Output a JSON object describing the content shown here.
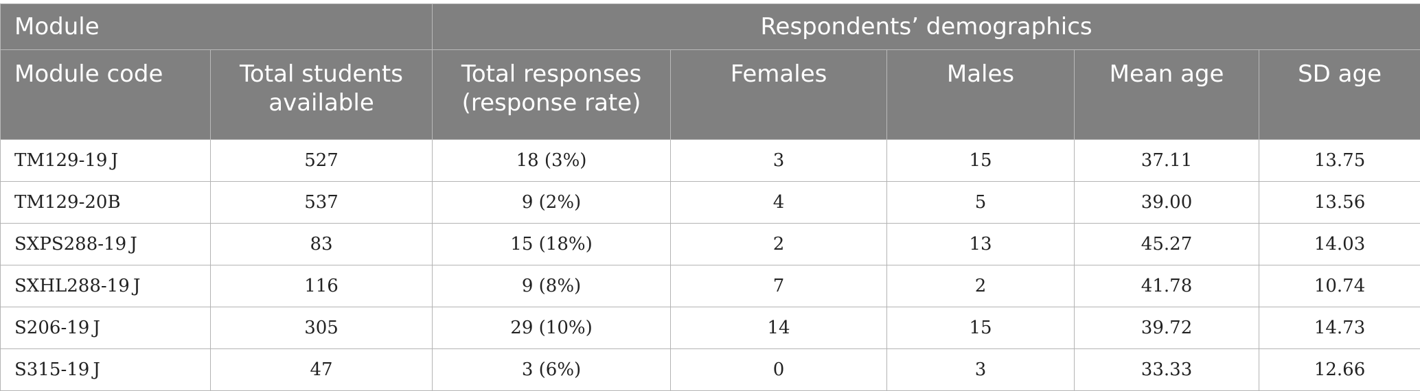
{
  "header": {
    "group_module": "Module",
    "group_demographics": "Respondents’ demographics",
    "columns": [
      "Module code",
      "Total students available",
      "Total responses (response rate)",
      "Females",
      "Males",
      "Mean age",
      "SD age"
    ]
  },
  "rows": [
    [
      "TM129-19 J",
      "527",
      "18 (3%)",
      "3",
      "15",
      "37.11",
      "13.75"
    ],
    [
      "TM129-20B",
      "537",
      "9 (2%)",
      "4",
      "5",
      "39.00",
      "13.56"
    ],
    [
      "SXPS288-19 J",
      "83",
      "15 (18%)",
      "2",
      "13",
      "45.27",
      "14.03"
    ],
    [
      "SXHL288-19 J",
      "116",
      "9 (8%)",
      "7",
      "2",
      "41.78",
      "10.74"
    ],
    [
      "S206-19 J",
      "305",
      "29 (10%)",
      "14",
      "15",
      "39.72",
      "14.73"
    ],
    [
      "S315-19 J",
      "47",
      "3 (6%)",
      "0",
      "3",
      "33.33",
      "12.66"
    ]
  ]
}
